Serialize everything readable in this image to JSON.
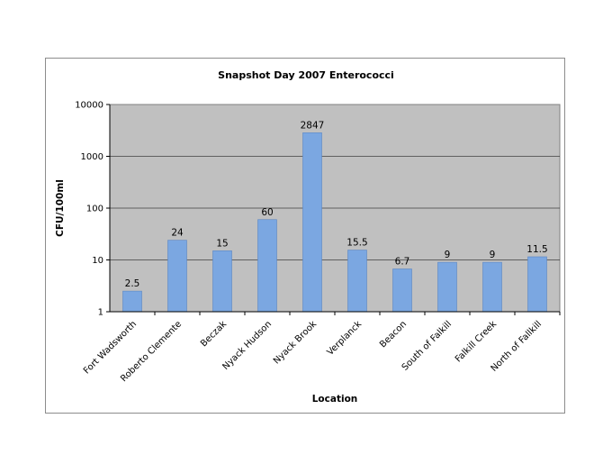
{
  "chart_data": {
    "type": "bar",
    "title": "Snapshot Day 2007 Enterococci",
    "xlabel": "Location",
    "ylabel": "CFU/100ml",
    "yscale": "log",
    "ylim": [
      1,
      10000
    ],
    "yticks": [
      "1",
      "10",
      "100",
      "1000",
      "10000"
    ],
    "grid": true,
    "legend": "none",
    "categories": [
      "Fort Wadsworth",
      "Roberto Clemente",
      "Beczak",
      "Nyack Hudson",
      "Nyack Brook",
      "Verplanck",
      "Beacon",
      "South of Falkill",
      "Falkill Creek",
      "North of Fallkill"
    ],
    "values": [
      2.5,
      24,
      15,
      60,
      2847,
      15.5,
      6.7,
      9,
      9,
      11.5
    ],
    "value_labels": [
      "2.5",
      "24",
      "15",
      "60",
      "2847",
      "15.5",
      "6.7",
      "9",
      "9",
      "11.5"
    ],
    "colors": {
      "bar": "#7ba7e1",
      "bar_edge": "#5b86c4",
      "plot_bg": "#c0c0c0",
      "grid": "#000000"
    }
  }
}
